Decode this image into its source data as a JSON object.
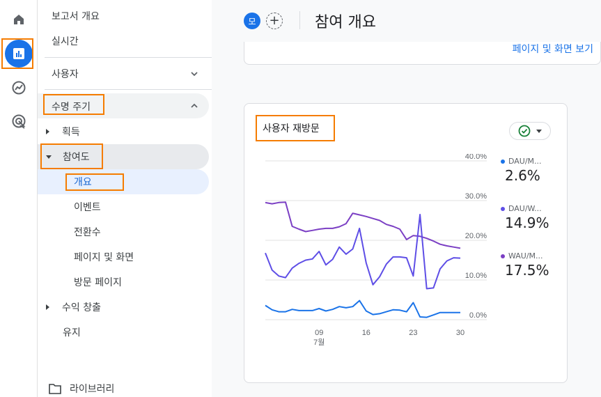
{
  "rail": {
    "items": [
      {
        "name": "home-icon"
      },
      {
        "name": "reports-icon",
        "active": true
      },
      {
        "name": "explore-icon"
      },
      {
        "name": "advertising-icon"
      }
    ]
  },
  "nav": {
    "report_overview": "보고서 개요",
    "realtime": "실시간",
    "user_section": "사용자",
    "lifecycle_section": "수명 주기",
    "acquisition": "획득",
    "engagement": "참여도",
    "engagement_children": [
      "개요",
      "이벤트",
      "전환수",
      "페이지 및 화면",
      "방문 페이지"
    ],
    "monetization": "수익 창출",
    "retention": "유지",
    "library": "라이브러리"
  },
  "header": {
    "chip_label": "모",
    "add_label": "+",
    "title": "참여 개요"
  },
  "top_card": {
    "link": "페이지 및 화면 보기"
  },
  "card": {
    "title": "사용자 재방문",
    "legend": [
      {
        "label": "DAU/M...",
        "value": "2.6%",
        "color": "#1a73e8"
      },
      {
        "label": "DAU/W...",
        "value": "14.9%",
        "color": "#5e4ee6"
      },
      {
        "label": "WAU/M...",
        "value": "17.5%",
        "color": "#7b3fc4"
      }
    ]
  },
  "chart_data": {
    "type": "line",
    "x_ticks": [
      "09",
      "16",
      "23",
      "30"
    ],
    "x_sublabel": "7월",
    "y_ticks": [
      "40.0%",
      "30.0%",
      "20.0%",
      "10.0%",
      "0.0%"
    ],
    "ylim": [
      0,
      40
    ],
    "x": [
      1,
      2,
      3,
      4,
      5,
      6,
      7,
      8,
      9,
      10,
      11,
      12,
      13,
      14,
      15,
      16,
      17,
      18,
      19,
      20,
      21,
      22,
      23,
      24,
      25,
      26,
      27,
      28,
      29,
      30
    ],
    "series": [
      {
        "color": "#7b3fc4",
        "values": [
          29.5,
          29.2,
          29.5,
          29.6,
          23.5,
          22.8,
          22.2,
          22.5,
          22.8,
          23.0,
          23.0,
          23.4,
          24.2,
          26.8,
          26.4,
          26.0,
          25.5,
          25.0,
          24.0,
          23.5,
          22.8,
          20.2,
          21.2,
          21.0,
          20.5,
          19.8,
          19.0,
          18.6,
          18.3,
          18.0
        ]
      },
      {
        "color": "#5e4ee6",
        "values": [
          16.8,
          12.5,
          11.0,
          10.6,
          13.0,
          14.2,
          15.0,
          15.3,
          17.2,
          13.8,
          15.2,
          18.3,
          16.5,
          17.8,
          23.0,
          14.3,
          8.8,
          10.8,
          14.0,
          15.8,
          15.8,
          15.6,
          11.0,
          26.5,
          7.8,
          8.0,
          12.8,
          14.8,
          15.6,
          15.5
        ]
      },
      {
        "color": "#1a73e8",
        "values": [
          3.6,
          2.5,
          2.0,
          2.0,
          2.6,
          2.3,
          2.3,
          2.3,
          2.8,
          2.2,
          2.6,
          3.3,
          3.0,
          3.3,
          4.8,
          2.2,
          1.3,
          1.5,
          2.0,
          2.5,
          2.4,
          2.0,
          4.3,
          0.7,
          0.6,
          1.2,
          1.8,
          1.8,
          1.8,
          1.8
        ]
      }
    ]
  }
}
